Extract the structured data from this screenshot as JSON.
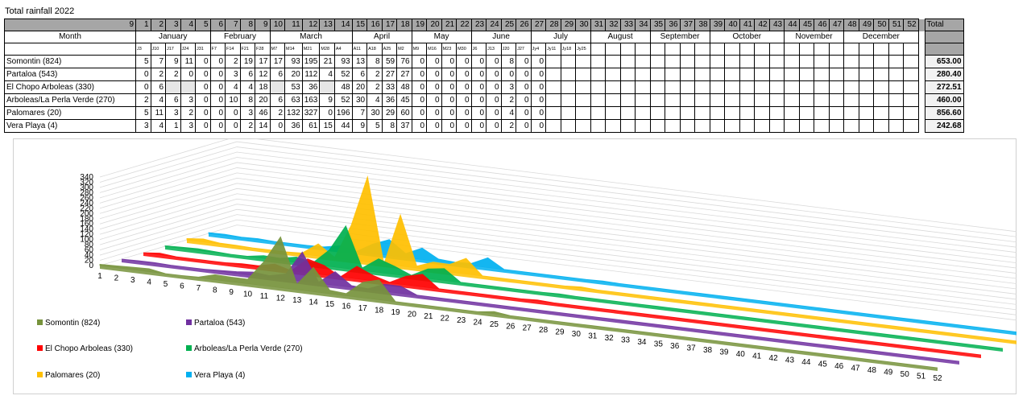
{
  "title": "Total rainfall 2022",
  "header": {
    "start_label": "9",
    "weeks": [
      "1",
      "2",
      "3",
      "4",
      "5",
      "6",
      "7",
      "8",
      "9",
      "10",
      "11",
      "12",
      "13",
      "14",
      "15",
      "16",
      "17",
      "18",
      "19",
      "20",
      "21",
      "22",
      "23",
      "24",
      "25",
      "26",
      "27",
      "28",
      "29",
      "30",
      "31",
      "32",
      "33",
      "34",
      "35",
      "36",
      "37",
      "38",
      "39",
      "40",
      "41",
      "42",
      "43",
      "44",
      "45",
      "46",
      "47",
      "48",
      "49",
      "50",
      "51",
      "52"
    ],
    "total_label": "Total"
  },
  "month_row": {
    "label": "Month",
    "months": [
      {
        "name": "January",
        "span": 5
      },
      {
        "name": "February",
        "span": 4
      },
      {
        "name": "March",
        "span": 5
      },
      {
        "name": "April",
        "span": 4
      },
      {
        "name": "May",
        "span": 4
      },
      {
        "name": "June",
        "span": 4
      },
      {
        "name": "July",
        "span": 4
      },
      {
        "name": "August",
        "span": 4
      },
      {
        "name": "September",
        "span": 4
      },
      {
        "name": "October",
        "span": 5
      },
      {
        "name": "November",
        "span": 4
      },
      {
        "name": "December",
        "span": 5
      }
    ]
  },
  "date_labels": [
    "J3",
    "J10",
    "J17",
    "J24",
    "J31",
    "F7",
    "F14",
    "F21",
    "F28",
    "M7",
    "M14",
    "M21",
    "M28",
    "A4",
    "A11",
    "A18",
    "A25",
    "M2",
    "M9",
    "M16",
    "M23",
    "M30",
    "J6",
    "J13",
    "J20",
    "J27",
    "Jy4",
    "Jy11",
    "Jy18",
    "Jy25"
  ],
  "rows": [
    {
      "name": "Somontin (824)",
      "values": [
        "5",
        "7",
        "9",
        "11",
        "0",
        "0",
        "2",
        "19",
        "17",
        "17",
        "93",
        "195",
        "21",
        "93",
        "13",
        "8",
        "59",
        "76",
        "0",
        "0",
        "0",
        "0",
        "0",
        "0",
        "8",
        "0",
        "0"
      ],
      "total": "653.00"
    },
    {
      "name": "Partaloa (543)",
      "values": [
        "0",
        "2",
        "2",
        "0",
        "0",
        "0",
        "3",
        "6",
        "12",
        "6",
        "20",
        "112",
        "4",
        "52",
        "6",
        "2",
        "27",
        "27",
        "0",
        "0",
        "0",
        "0",
        "0",
        "0",
        "0",
        "0",
        "0"
      ],
      "total": "280.40"
    },
    {
      "name": "El Chopo Arboleas (330)",
      "values": [
        "0",
        "6",
        "",
        "",
        "0",
        "0",
        "4",
        "4",
        "18",
        "",
        "53",
        "36",
        "",
        "48",
        "20",
        "2",
        "33",
        "48",
        "0",
        "0",
        "0",
        "0",
        "0",
        "0",
        "3",
        "0",
        "0"
      ],
      "total": "272.51"
    },
    {
      "name": "Arboleas/La Perla Verde (270)",
      "values": [
        "2",
        "4",
        "6",
        "3",
        "0",
        "0",
        "10",
        "8",
        "20",
        "6",
        "63",
        "163",
        "9",
        "52",
        "30",
        "4",
        "36",
        "45",
        "0",
        "0",
        "0",
        "0",
        "0",
        "0",
        "2",
        "0",
        "0"
      ],
      "total": "460.00"
    },
    {
      "name": "Palomares (20)",
      "values": [
        "5",
        "11",
        "3",
        "2",
        "0",
        "0",
        "0",
        "3",
        "46",
        "2",
        "132",
        "327",
        "0",
        "196",
        "7",
        "30",
        "29",
        "60",
        "0",
        "0",
        "0",
        "0",
        "0",
        "0",
        "4",
        "0",
        "0"
      ],
      "total": "856.60"
    },
    {
      "name": "Vera Playa (4)",
      "values": [
        "3",
        "4",
        "1",
        "3",
        "0",
        "0",
        "0",
        "2",
        "14",
        "0",
        "36",
        "61",
        "15",
        "44",
        "9",
        "5",
        "8",
        "37",
        "0",
        "0",
        "0",
        "0",
        "0",
        "0",
        "2",
        "0",
        "0"
      ],
      "total": "242.68"
    }
  ],
  "chart_data": {
    "type": "area",
    "subtype": "3d-stacked-depth",
    "x": [
      1,
      2,
      3,
      4,
      5,
      6,
      7,
      8,
      9,
      10,
      11,
      12,
      13,
      14,
      15,
      16,
      17,
      18,
      19,
      20,
      21,
      22,
      23,
      24,
      25,
      26,
      27,
      28,
      29,
      30,
      31,
      32,
      33,
      34,
      35,
      36,
      37,
      38,
      39,
      40,
      41,
      42,
      43,
      44,
      45,
      46,
      47,
      48,
      49,
      50,
      51,
      52
    ],
    "ylim": [
      0,
      340
    ],
    "yticks": [
      0,
      20,
      40,
      60,
      80,
      100,
      120,
      140,
      160,
      180,
      200,
      220,
      240,
      260,
      280,
      300,
      320,
      340
    ],
    "legend_position": "bottom",
    "series": [
      {
        "name": "Somontin (824)",
        "color": "#77933c",
        "values": [
          5,
          7,
          9,
          11,
          0,
          0,
          2,
          19,
          17,
          17,
          93,
          195,
          21,
          93,
          13,
          8,
          59,
          76,
          0,
          0,
          0,
          0,
          0,
          0,
          8,
          0,
          0,
          0,
          0,
          0,
          0,
          0,
          0,
          0,
          0,
          0,
          0,
          0,
          0,
          0,
          0,
          0,
          0,
          0,
          0,
          0,
          0,
          0,
          0,
          0,
          0,
          0
        ]
      },
      {
        "name": "Partaloa (543)",
        "color": "#7030a0",
        "values": [
          0,
          2,
          2,
          0,
          0,
          0,
          3,
          6,
          12,
          6,
          20,
          112,
          4,
          52,
          6,
          2,
          27,
          27,
          0,
          0,
          0,
          0,
          0,
          0,
          0,
          0,
          0,
          0,
          0,
          0,
          0,
          0,
          0,
          0,
          0,
          0,
          0,
          0,
          0,
          0,
          0,
          0,
          0,
          0,
          0,
          0,
          0,
          0,
          0,
          0,
          0,
          0
        ]
      },
      {
        "name": "El Chopo Arboleas (330)",
        "color": "#ff0000",
        "values": [
          0,
          6,
          0,
          0,
          0,
          0,
          4,
          4,
          18,
          0,
          53,
          36,
          0,
          48,
          20,
          2,
          33,
          48,
          0,
          0,
          0,
          0,
          0,
          0,
          3,
          0,
          0,
          0,
          0,
          0,
          0,
          0,
          0,
          0,
          0,
          0,
          0,
          0,
          0,
          0,
          0,
          0,
          0,
          0,
          0,
          0,
          0,
          0,
          0,
          0,
          0,
          0
        ]
      },
      {
        "name": "Arboleas/La Perla Verde (270)",
        "color": "#00b050",
        "values": [
          2,
          4,
          6,
          3,
          0,
          0,
          10,
          8,
          20,
          6,
          63,
          163,
          9,
          52,
          30,
          4,
          36,
          45,
          0,
          0,
          0,
          0,
          0,
          0,
          2,
          0,
          0,
          0,
          0,
          0,
          0,
          0,
          0,
          0,
          0,
          0,
          0,
          0,
          0,
          0,
          0,
          0,
          0,
          0,
          0,
          0,
          0,
          0,
          0,
          0,
          0,
          0
        ]
      },
      {
        "name": "Palomares (20)",
        "color": "#ffc000",
        "values": [
          5,
          11,
          3,
          2,
          0,
          0,
          0,
          3,
          46,
          2,
          132,
          327,
          0,
          196,
          7,
          30,
          29,
          60,
          0,
          0,
          0,
          0,
          0,
          0,
          4,
          0,
          0,
          0,
          0,
          0,
          0,
          0,
          0,
          0,
          0,
          0,
          0,
          0,
          0,
          0,
          0,
          0,
          0,
          0,
          0,
          0,
          0,
          0,
          0,
          0,
          0,
          0
        ]
      },
      {
        "name": "Vera Playa (4)",
        "color": "#00b0f0",
        "values": [
          3,
          4,
          1,
          3,
          0,
          0,
          0,
          2,
          14,
          0,
          36,
          61,
          15,
          44,
          9,
          5,
          8,
          37,
          0,
          0,
          0,
          0,
          0,
          0,
          2,
          0,
          0,
          0,
          0,
          0,
          0,
          0,
          0,
          0,
          0,
          0,
          0,
          0,
          0,
          0,
          0,
          0,
          0,
          0,
          0,
          0,
          0,
          0,
          0,
          0,
          0,
          0
        ]
      }
    ]
  }
}
